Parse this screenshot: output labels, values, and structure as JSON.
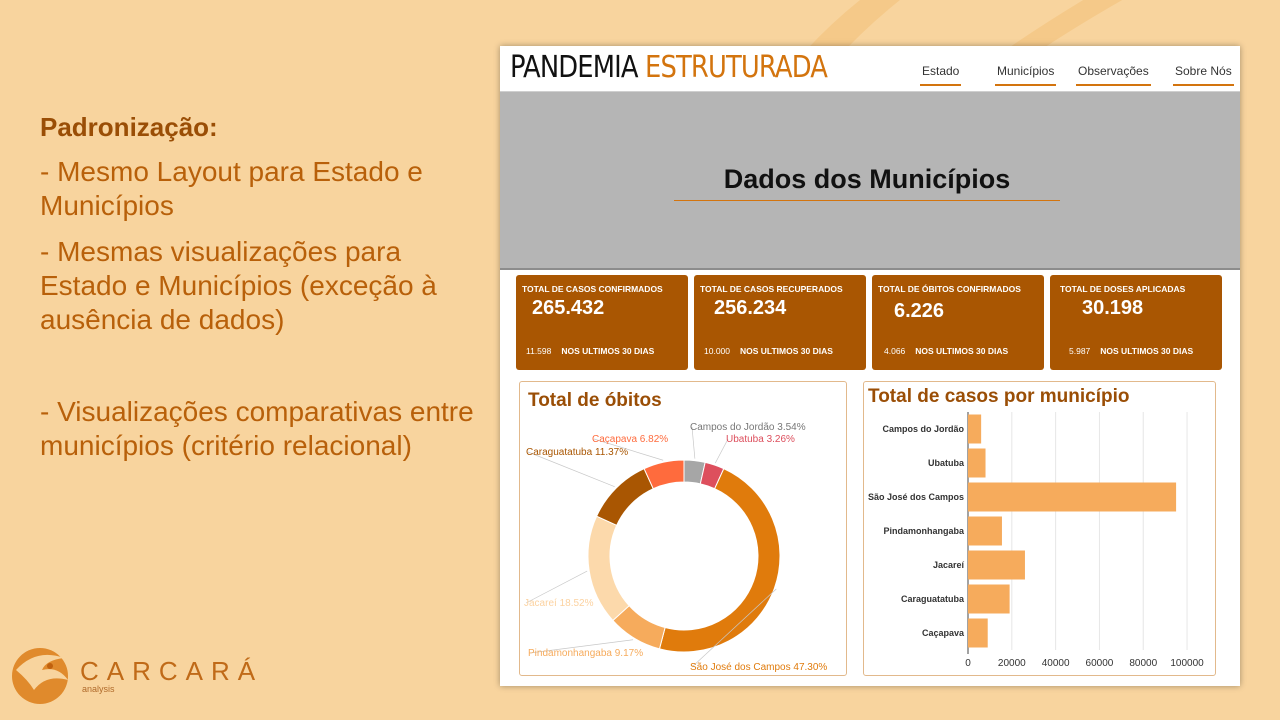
{
  "slide": {
    "heading": "Padronização:",
    "bullets": [
      "- Mesmo Layout para Estado e Municípios",
      "- Mesmas visualizações para Estado e Municípios (exceção à ausência de dados)",
      "- Visualizações comparativas entre municípios (critério relacional)"
    ]
  },
  "logo": {
    "name": "CARCARÁ",
    "sub": "analysis"
  },
  "app": {
    "brand_part1": "PANDEMIA",
    "brand_part2": "ESTRUTURADA",
    "nav": [
      "Estado",
      "Municípios",
      "Observações",
      "Sobre Nós"
    ],
    "banner_title": "Dados dos Municípios"
  },
  "kpis": [
    {
      "title": "TOTAL DE CASOS CONFIRMADOS",
      "value": "265.432",
      "sub_value": "11.598",
      "sub_label": "NOS ULTIMOS 30 DIAS"
    },
    {
      "title": "TOTAL DE CASOS RECUPERADOS",
      "value": "256.234",
      "sub_value": "10.000",
      "sub_label": "NOS ULTIMOS 30 DIAS"
    },
    {
      "title": "TOTAL DE ÓBITOS CONFIRMADOS",
      "value": "6.226",
      "sub_value": "4.066",
      "sub_label": "NOS ULTIMOS 30 DIAS"
    },
    {
      "title": "TOTAL DE DOSES APLICADAS",
      "value": "30.198",
      "sub_value": "5.987",
      "sub_label": "NOS ULTIMOS 30 DIAS"
    }
  ],
  "colors": {
    "accent": "#d3740e",
    "kpi_bg": "#a95602",
    "bar": "#f6ab5c",
    "background": "#f8d49e"
  },
  "chart_data": [
    {
      "type": "pie",
      "title": "Total de óbitos",
      "labels": [
        "Campos do Jordão",
        "Ubatuba",
        "São José dos Campos",
        "Pindamonhangaba",
        "Jacareí",
        "Caraguatatuba",
        "Caçapava"
      ],
      "values": [
        3.54,
        3.26,
        47.3,
        9.17,
        18.52,
        11.37,
        6.82
      ],
      "data_labels": [
        "Campos do Jordão 3.54%",
        "Ubatuba 3.26%",
        "São José dos Campos 47.30%",
        "Pindamonhangaba 9.17%",
        "Jacareí 18.52%",
        "Caraguatatuba 11.37%",
        "Caçapava 6.82%"
      ],
      "colors": [
        "#a6a6a6",
        "#dd4f5d",
        "#e07b0c",
        "#f6ab5c",
        "#fcd9ab",
        "#a95602",
        "#ff6b3d"
      ]
    },
    {
      "type": "bar",
      "orientation": "horizontal",
      "title": "Total de casos por município",
      "categories": [
        "Campos do Jordão",
        "Ubatuba",
        "São José dos Campos",
        "Pindamonhangaba",
        "Jacareí",
        "Caraguatatuba",
        "Caçapava"
      ],
      "values": [
        6000,
        8000,
        95000,
        15500,
        26000,
        19000,
        9000
      ],
      "xticks": [
        "0",
        "20000",
        "40000",
        "60000",
        "80000",
        "100000"
      ],
      "xlim": [
        0,
        105000
      ],
      "grid": true
    }
  ]
}
